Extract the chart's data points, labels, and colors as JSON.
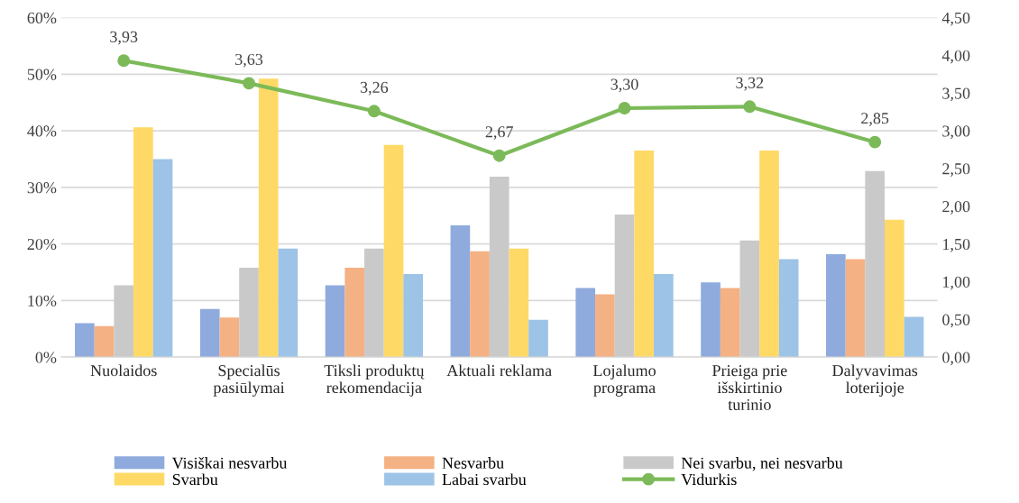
{
  "chart_data": {
    "type": "bar",
    "categories": [
      "Nuolaidos",
      "Specialūs\npasiūlymai",
      "Tiksli produktų\nrekomendacija",
      "Aktuali reklama",
      "Lojalumo\nprograma",
      "Prieiga prie\nišskirtinio\nturinio",
      "Dalyvavimas\nloterijoje"
    ],
    "series": [
      {
        "name": "Visiškai nesvarbu",
        "color": "#8faadc",
        "values": [
          6.0,
          8.5,
          12.7,
          23.3,
          12.2,
          13.2,
          18.2
        ]
      },
      {
        "name": "Nesvarbu",
        "color": "#f4b183",
        "values": [
          5.5,
          7.0,
          15.8,
          18.7,
          11.1,
          12.2,
          17.3
        ]
      },
      {
        "name": "Nei svarbu, nei nesvarbu",
        "color": "#c9c9c9",
        "values": [
          12.7,
          15.8,
          19.2,
          31.9,
          25.2,
          20.6,
          32.9
        ]
      },
      {
        "name": "Svarbu",
        "color": "#ffd966",
        "values": [
          40.6,
          49.2,
          37.5,
          19.2,
          36.5,
          36.5,
          24.3
        ]
      },
      {
        "name": "Labai svarbu",
        "color": "#9dc3e6",
        "values": [
          35.0,
          19.2,
          14.7,
          6.6,
          14.7,
          17.3,
          7.1
        ]
      },
      {
        "name": "Vidurkis",
        "type": "line",
        "axis": "y2",
        "color": "#7cba59",
        "marker": "circle",
        "values": [
          3.93,
          3.63,
          3.26,
          2.67,
          3.3,
          3.32,
          2.85
        ],
        "value_labels": [
          "3,93",
          "3,63",
          "3,26",
          "2,67",
          "3,30",
          "3,32",
          "2,85"
        ]
      }
    ],
    "ylim": [
      0,
      60
    ],
    "yticks": [
      {
        "value": 0,
        "label": "0%"
      },
      {
        "value": 10,
        "label": "10%"
      },
      {
        "value": 20,
        "label": "20%"
      },
      {
        "value": 30,
        "label": "30%"
      },
      {
        "value": 40,
        "label": "40%"
      },
      {
        "value": 50,
        "label": "50%"
      },
      {
        "value": 60,
        "label": "60%"
      }
    ],
    "y2lim": [
      0,
      4.5
    ],
    "y2ticks": [
      {
        "value": 0,
        "label": "0,00"
      },
      {
        "value": 0.5,
        "label": "0,50"
      },
      {
        "value": 1,
        "label": "1,00"
      },
      {
        "value": 1.5,
        "label": "1,50"
      },
      {
        "value": 2,
        "label": "2,00"
      },
      {
        "value": 2.5,
        "label": "2,50"
      },
      {
        "value": 3,
        "label": "3,00"
      },
      {
        "value": 3.5,
        "label": "3,50"
      },
      {
        "value": 4,
        "label": "4,00"
      },
      {
        "value": 4.5,
        "label": "4,50"
      }
    ],
    "grid": "y",
    "legend": "bottom"
  }
}
